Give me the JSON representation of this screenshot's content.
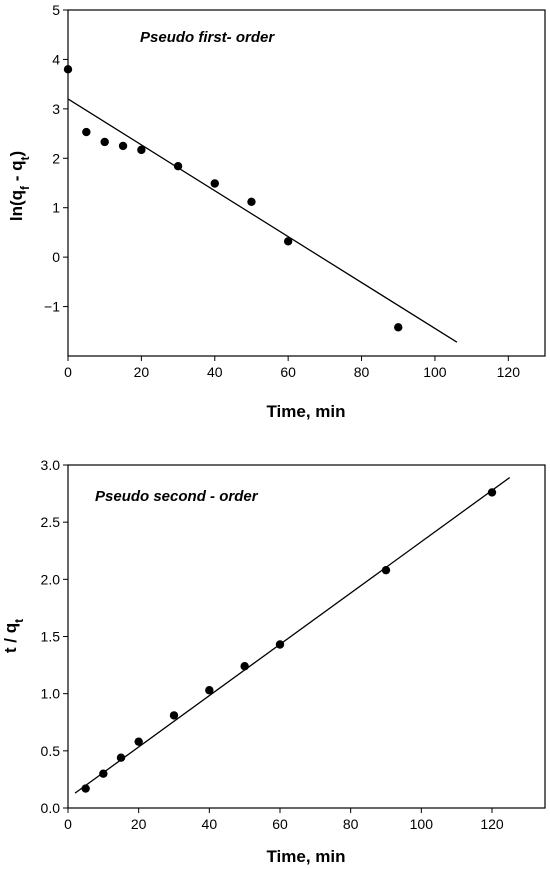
{
  "chart_data": [
    {
      "type": "scatter",
      "annotation": "Pseudo first- order",
      "xlabel": "Time, min",
      "ylabel_main": "ln(q",
      "ylabel_sub1": "f",
      "ylabel_mid": " - q",
      "ylabel_sub2": "t",
      "ylabel_end": ")",
      "xlim": [
        0,
        130
      ],
      "ylim": [
        -2,
        5
      ],
      "xticks": [
        0,
        20,
        40,
        60,
        80,
        100,
        120
      ],
      "yticks": [
        -1,
        0,
        1,
        2,
        3,
        4,
        5
      ],
      "grid": false,
      "legend": "none",
      "series": [
        {
          "kind": "points",
          "x": [
            0,
            5,
            10,
            15,
            20,
            30,
            40,
            50,
            60,
            90
          ],
          "y": [
            3.8,
            2.53,
            2.33,
            2.25,
            2.17,
            1.84,
            1.49,
            1.12,
            0.32,
            -1.42
          ]
        },
        {
          "kind": "line",
          "x": [
            0,
            106
          ],
          "y": [
            3.2,
            -1.72
          ]
        }
      ]
    },
    {
      "type": "scatter",
      "annotation": "Pseudo second - order",
      "xlabel": "Time, min",
      "ylabel_main": "t / q",
      "ylabel_sub1": "t",
      "xlim": [
        0,
        135
      ],
      "ylim": [
        0,
        3
      ],
      "xticks": [
        0,
        20,
        40,
        60,
        80,
        100,
        120
      ],
      "yticks": [
        "0.0",
        "0.5",
        "1.0",
        "1.5",
        "2.0",
        "2.5",
        "3.0"
      ],
      "grid": false,
      "legend": "none",
      "series": [
        {
          "kind": "points",
          "x": [
            5,
            10,
            15,
            20,
            30,
            40,
            50,
            60,
            90,
            120
          ],
          "y": [
            0.17,
            0.3,
            0.44,
            0.58,
            0.81,
            1.03,
            1.24,
            1.43,
            2.08,
            2.76
          ]
        },
        {
          "kind": "line",
          "x": [
            2,
            125
          ],
          "y": [
            0.13,
            2.89
          ]
        }
      ]
    }
  ]
}
